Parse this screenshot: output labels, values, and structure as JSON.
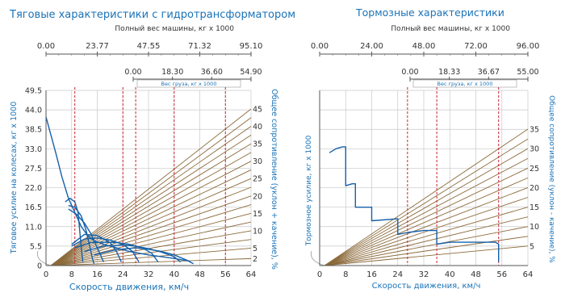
{
  "colors": {
    "text_blue": "#1a73b8",
    "curve": "#1560a8",
    "resistance": "#8b6a3a",
    "grid": "#c8c8c8",
    "dashed": "#cc2233",
    "axis": "#555555"
  },
  "chart_data": [
    {
      "type": "line",
      "title": "Тяговые характеристики с гидротрансформатором",
      "xlabel": "Скорость движения, км/ч",
      "ylabel": "Тяговое усилие на колесах, кг x 1000",
      "y2label": "Общее сопротивление (уклон + качение), %",
      "xlim": [
        0,
        64
      ],
      "ylim": [
        0,
        49.5
      ],
      "x_ticks": [
        "0",
        "8",
        "16",
        "24",
        "32",
        "40",
        "48",
        "56",
        "64"
      ],
      "y_ticks": [
        "0",
        "5.5",
        "11.0",
        "16.5",
        "22.0",
        "27.5",
        "33.0",
        "38.5",
        "44.0",
        "49.5"
      ],
      "y2_ticks": [
        "2",
        "5",
        "10",
        "15",
        "20",
        "25",
        "30",
        "35",
        "40",
        "45"
      ],
      "grid": true,
      "top_axis": {
        "label": "Полный вес машины, кг x 1000",
        "ticks": [
          "0.00",
          "23.77",
          "47.55",
          "71.32",
          "95.10"
        ]
      },
      "mid_axis": {
        "label": "Вес груза, кг x 1000",
        "ticks": [
          "0.00",
          "18.30",
          "36.60",
          "54.90"
        ]
      },
      "dashed_x": [
        9,
        24,
        28,
        40,
        56
      ],
      "resistance_pct": [
        2,
        5,
        7.5,
        10,
        12.5,
        15,
        17.5,
        20,
        22.5,
        25,
        27.5,
        30,
        32.5,
        35,
        37.5,
        40,
        42.5,
        45
      ],
      "series": [
        {
          "values": [
            [
              0,
              42
            ],
            [
              3,
              32
            ],
            [
              5,
              25
            ],
            [
              7,
              19
            ],
            [
              9,
              15
            ],
            [
              11,
              11
            ],
            [
              13,
              8.5
            ],
            [
              15,
              7
            ],
            [
              18,
              6
            ],
            [
              22,
              5
            ],
            [
              26,
              4
            ],
            [
              32,
              3
            ],
            [
              40,
              2
            ],
            [
              45,
              1.2
            ]
          ]
        },
        {
          "values": [
            [
              6,
              18
            ],
            [
              7.5,
              19
            ],
            [
              9,
              18
            ],
            [
              10,
              15
            ],
            [
              10.5,
              10
            ],
            [
              11,
              5
            ],
            [
              11.5,
              1
            ]
          ]
        },
        {
          "values": [
            [
              7,
              17
            ],
            [
              9,
              16.5
            ],
            [
              11,
              14
            ],
            [
              12.5,
              10
            ],
            [
              13.5,
              6
            ],
            [
              14.5,
              2
            ],
            [
              15,
              0.5
            ]
          ]
        },
        {
          "values": [
            [
              7,
              16
            ],
            [
              9.5,
              14.5
            ],
            [
              12,
              12
            ],
            [
              14,
              9
            ],
            [
              15.5,
              6
            ],
            [
              17,
              3
            ],
            [
              18,
              1
            ]
          ]
        },
        {
          "values": [
            [
              8,
              6
            ],
            [
              12,
              8.8
            ],
            [
              16,
              8.5
            ],
            [
              20,
              6.5
            ],
            [
              22,
              4
            ],
            [
              23.5,
              1
            ]
          ]
        },
        {
          "values": [
            [
              8,
              5.5
            ],
            [
              12,
              7.5
            ],
            [
              16,
              7.8
            ],
            [
              20,
              7.2
            ],
            [
              24,
              6
            ],
            [
              27,
              4
            ],
            [
              29,
              1
            ]
          ]
        },
        {
          "values": [
            [
              9,
              5
            ],
            [
              14,
              6.5
            ],
            [
              18,
              6.6
            ],
            [
              22,
              6.5
            ],
            [
              26,
              6
            ],
            [
              30,
              5
            ],
            [
              33,
              3.5
            ],
            [
              35,
              1
            ]
          ]
        },
        {
          "values": [
            [
              12,
              4
            ],
            [
              18,
              5.5
            ],
            [
              24,
              5.8
            ],
            [
              28,
              5.5
            ],
            [
              32,
              4.8
            ],
            [
              36,
              3.8
            ],
            [
              40,
              2.5
            ],
            [
              42,
              1
            ]
          ]
        },
        {
          "values": [
            [
              15,
              3
            ],
            [
              22,
              4.5
            ],
            [
              28,
              5
            ],
            [
              32,
              4.6
            ],
            [
              36,
              4
            ],
            [
              40,
              3
            ],
            [
              44,
              1.5
            ],
            [
              46,
              0.5
            ]
          ]
        }
      ]
    },
    {
      "type": "line",
      "title": "Тормозные характеристики",
      "xlabel": "Скорость движения, км/ч",
      "ylabel": "Тормозное усилие, кг x 1000",
      "y2label": "Общее сопротивление (уклон - качение), %",
      "xlim": [
        0,
        64
      ],
      "ylim": [
        0,
        45
      ],
      "x_ticks": [
        "0",
        "8",
        "16",
        "24",
        "32",
        "40",
        "48",
        "56",
        "64"
      ],
      "y2_ticks": [
        "5",
        "10",
        "15",
        "20",
        "25",
        "30",
        "35"
      ],
      "grid": true,
      "top_axis": {
        "label": "Полный вес машины, кг x 1000",
        "ticks": [
          "0.00",
          "24.00",
          "48.00",
          "72.00",
          "96.00"
        ]
      },
      "mid_axis": {
        "label": "Вес груза, кг x 1000",
        "ticks": [
          "0.00",
          "18.33",
          "36.67",
          "55.00"
        ]
      },
      "dashed_x": [
        27,
        36,
        55
      ],
      "resistance_pct": [
        5,
        7.5,
        10,
        12.5,
        15,
        17.5,
        20,
        22.5,
        25,
        27.5,
        30,
        32.5,
        35
      ],
      "series": [
        {
          "values": [
            [
              3,
              29
            ],
            [
              5,
              30
            ],
            [
              7,
              30.5
            ],
            [
              8,
              30.5
            ],
            [
              8,
              20.5
            ],
            [
              10,
              21
            ],
            [
              11,
              21
            ],
            [
              11,
              15
            ],
            [
              16,
              15
            ],
            [
              16,
              11.5
            ],
            [
              24,
              12
            ],
            [
              24,
              8
            ],
            [
              27,
              8.5
            ],
            [
              32,
              9
            ],
            [
              36,
              9
            ],
            [
              36,
              5.5
            ],
            [
              40,
              6
            ],
            [
              48,
              6
            ],
            [
              54,
              6
            ],
            [
              55,
              5.5
            ],
            [
              55,
              1
            ]
          ]
        }
      ]
    }
  ]
}
